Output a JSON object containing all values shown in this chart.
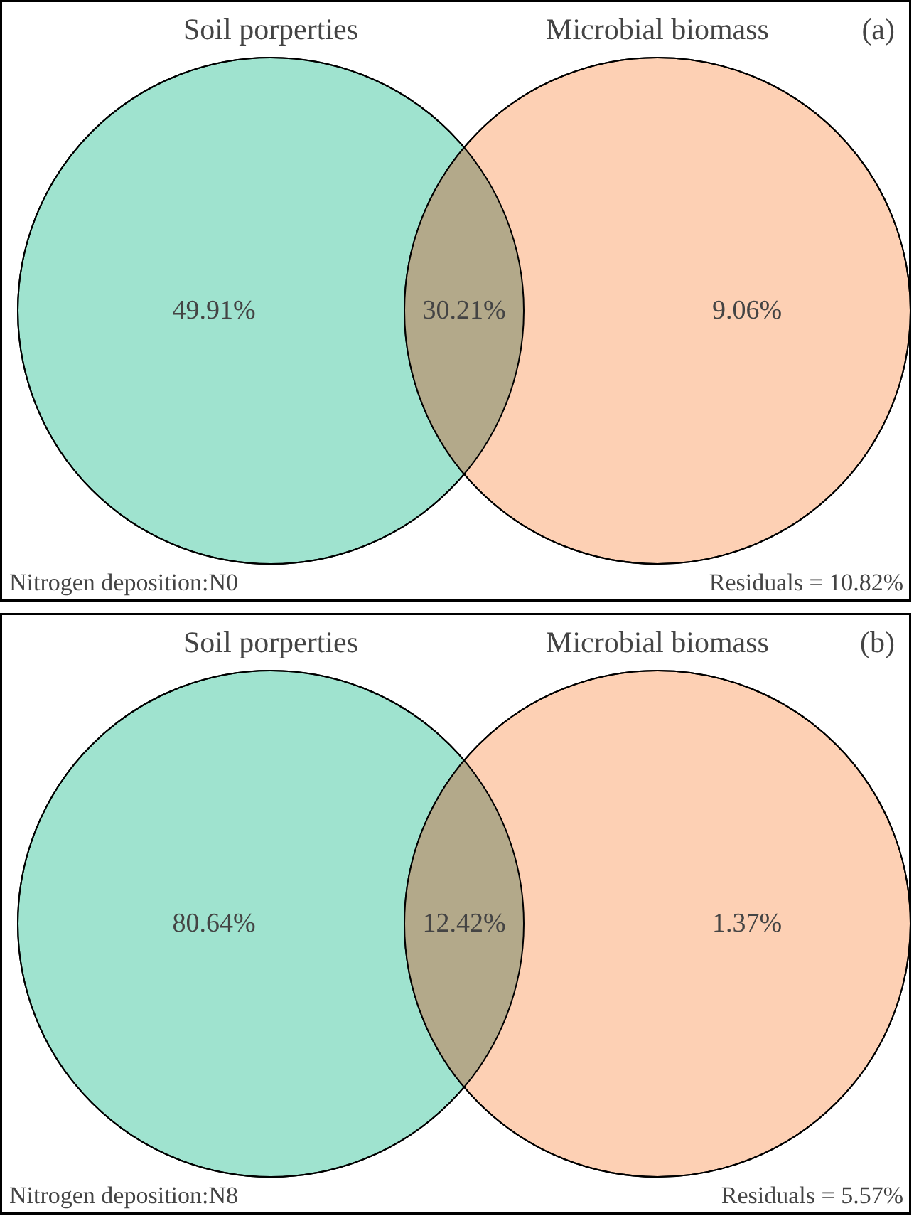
{
  "chart_data": [
    {
      "type": "other",
      "title": "(a)",
      "categories": [
        null,
        null,
        null
      ],
      "values": [
        49.91,
        30.21,
        9.06
      ],
      "value_labels": [
        "49.91%",
        "30.21%",
        "9.06%"
      ],
      "colors": [
        "#9fe3cf",
        "#b3a98a",
        "#fdd0b4"
      ],
      "annotations": [
        "Soil porperties",
        "Microbial biomass",
        "Nitrogen deposition:N0",
        "Residuals = 10.82%"
      ]
    },
    {
      "type": "other",
      "title": "(b)",
      "categories": [
        null,
        null,
        null
      ],
      "values": [
        80.64,
        12.42,
        1.37
      ],
      "value_labels": [
        "80.64%",
        "12.42%",
        "1.37%"
      ],
      "colors": [
        "#9fe3cf",
        "#b3a98a",
        "#fdd0b4"
      ],
      "annotations": [
        "Soil porperties",
        "Microbial biomass",
        "Nitrogen deposition:N8",
        "Residuals = 5.57%"
      ]
    }
  ]
}
